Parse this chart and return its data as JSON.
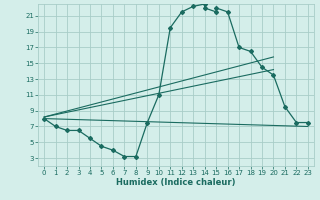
{
  "xlabel": "Humidex (Indice chaleur)",
  "ylabel": "",
  "bg_color": "#d4eeea",
  "grid_color": "#a8cdc8",
  "line_color": "#1a6b60",
  "xlim": [
    -0.5,
    23.5
  ],
  "ylim": [
    2,
    22.5
  ],
  "xticks": [
    0,
    1,
    2,
    3,
    4,
    5,
    6,
    7,
    8,
    9,
    10,
    11,
    12,
    13,
    14,
    15,
    16,
    17,
    18,
    19,
    20,
    21,
    22,
    23
  ],
  "yticks": [
    3,
    5,
    7,
    9,
    11,
    13,
    15,
    17,
    19,
    21
  ],
  "curve1_x": [
    0,
    1,
    2,
    3,
    4,
    5,
    6,
    7,
    8,
    9,
    10,
    11,
    12,
    13,
    14,
    14,
    15,
    15,
    16,
    17,
    18,
    19,
    20,
    21,
    22,
    23
  ],
  "curve1_y": [
    8.0,
    7.0,
    6.5,
    6.5,
    5.5,
    4.5,
    4.0,
    3.2,
    3.2,
    7.5,
    11.0,
    19.5,
    21.5,
    22.2,
    22.5,
    22.0,
    21.5,
    22.0,
    21.5,
    17.0,
    16.5,
    14.5,
    13.5,
    9.5,
    7.5,
    7.5
  ],
  "line2_x": [
    0,
    20
  ],
  "line2_y": [
    8.2,
    15.8
  ],
  "line3_x": [
    0,
    20
  ],
  "line3_y": [
    8.2,
    14.2
  ],
  "line4_x": [
    0,
    23
  ],
  "line4_y": [
    8.0,
    7.0
  ]
}
